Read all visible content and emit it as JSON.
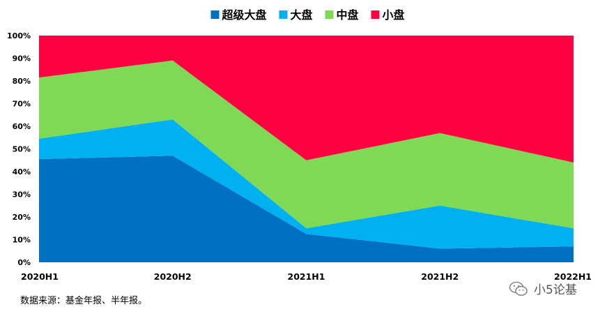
{
  "chart_data": {
    "type": "area",
    "stacked": true,
    "normalized": true,
    "categories": [
      "2020H1",
      "2020H2",
      "2021H1",
      "2021H2",
      "2022H1"
    ],
    "series": [
      {
        "name": "超级大盘",
        "color": "#0070C0",
        "values": [
          45.5,
          47,
          12.5,
          6,
          7
        ]
      },
      {
        "name": "大盘",
        "color": "#00B0F0",
        "values": [
          9,
          16,
          2.5,
          19,
          8
        ]
      },
      {
        "name": "中盘",
        "color": "#7ED957",
        "values": [
          27,
          26,
          30,
          32,
          29
        ]
      },
      {
        "name": "小盘",
        "color": "#FF0040",
        "values": [
          18.5,
          11,
          55,
          43,
          56
        ]
      }
    ],
    "yticks": [
      "0%",
      "10%",
      "20%",
      "30%",
      "40%",
      "50%",
      "60%",
      "70%",
      "80%",
      "90%",
      "100%"
    ],
    "ylim": [
      0,
      100
    ],
    "legend_position": "top",
    "grid": false
  },
  "source_note": "数据来源：基金年报、半年报。",
  "watermark": {
    "text": "小5论基",
    "icon": "wechat-icon"
  }
}
